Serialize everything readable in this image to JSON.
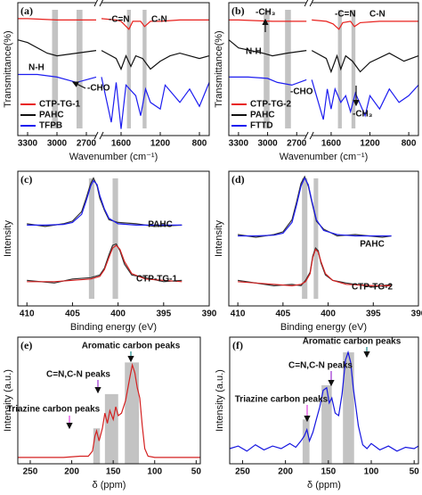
{
  "chart_data": [
    {
      "type": "line",
      "panel": "(a)",
      "xlabel": "Wavenumber (cm⁻¹)",
      "ylabel": "Transmittance(%)",
      "xlim": [
        3400,
        700
      ],
      "xbreak": [
        2600,
        1800
      ],
      "xticks": [
        3300,
        3000,
        2700,
        1600,
        1200,
        800
      ],
      "ylim": [
        0,
        100
      ],
      "legend": "lower left",
      "bands": [
        {
          "x0": 3050,
          "x1": 2990
        },
        {
          "x0": 2800,
          "x1": 2740
        },
        {
          "x0": 1540,
          "x1": 1500
        },
        {
          "x0": 1380,
          "x1": 1340
        }
      ],
      "annotations": [
        {
          "text": "N-H",
          "color": "#111111"
        },
        {
          "text": "-CHO",
          "color": "#111111"
        },
        {
          "text": "-C=N",
          "color": "#111111"
        },
        {
          "text": "C-N",
          "color": "#111111"
        }
      ],
      "series": [
        {
          "name": "CTP-TG-1",
          "color": "#e8201c",
          "x": [
            3400,
            3300,
            3000,
            2700,
            2600,
            1800,
            1650,
            1600,
            1520,
            1480,
            1400,
            1360,
            1300,
            1200,
            1000,
            800,
            700
          ],
          "values": [
            88,
            88,
            87,
            87,
            87,
            88,
            87,
            86,
            80,
            86,
            86,
            82,
            86,
            86,
            87,
            87,
            87
          ]
        },
        {
          "name": "PAHC",
          "color": "#111111",
          "x": [
            3400,
            3300,
            3100,
            3000,
            2800,
            2600,
            1800,
            1650,
            1600,
            1550,
            1500,
            1450,
            1380,
            1300,
            1200,
            1100,
            1000,
            800,
            700
          ],
          "values": [
            72,
            70,
            62,
            60,
            62,
            64,
            64,
            58,
            50,
            60,
            52,
            60,
            58,
            50,
            56,
            60,
            62,
            58,
            60
          ]
        },
        {
          "name": "TFPB",
          "color": "#1d1df0",
          "x": [
            3400,
            3200,
            3000,
            2800,
            2700,
            2600,
            1800,
            1700,
            1650,
            1600,
            1550,
            1450,
            1400,
            1350,
            1300,
            1200,
            1150,
            1000,
            900,
            800,
            700
          ],
          "values": [
            46,
            46,
            44,
            40,
            42,
            44,
            44,
            10,
            40,
            5,
            38,
            30,
            15,
            35,
            25,
            20,
            38,
            25,
            35,
            22,
            40
          ]
        }
      ]
    },
    {
      "type": "line",
      "panel": "(b)",
      "xlabel": "Wavenumber (cm⁻¹)",
      "ylabel": "Transmittance(%)",
      "xlim": [
        3400,
        700
      ],
      "xbreak": [
        2600,
        1800
      ],
      "xticks": [
        3300,
        3000,
        2700,
        1600,
        1200,
        800
      ],
      "ylim": [
        0,
        100
      ],
      "legend": "lower left",
      "bands": [
        {
          "x0": 3040,
          "x1": 2980
        },
        {
          "x0": 2820,
          "x1": 2760
        },
        {
          "x0": 1530,
          "x1": 1490
        },
        {
          "x0": 1390,
          "x1": 1350
        }
      ],
      "annotations": [
        {
          "text": "-CH₃",
          "color": "#111111"
        },
        {
          "text": "-C=N",
          "color": "#111111"
        },
        {
          "text": "C-N",
          "color": "#111111"
        },
        {
          "text": "N-H",
          "color": "#111111"
        },
        {
          "text": "-CHO",
          "color": "#111111"
        },
        {
          "text": "-CH₃",
          "color": "#111111"
        }
      ],
      "series": [
        {
          "name": "CTP-TG-2",
          "color": "#e8201c",
          "x": [
            3400,
            3300,
            2950,
            2700,
            2600,
            1800,
            1650,
            1580,
            1520,
            1480,
            1400,
            1360,
            1300,
            1100,
            900,
            700
          ],
          "values": [
            87,
            87,
            86,
            86,
            86,
            87,
            86,
            84,
            80,
            85,
            86,
            82,
            85,
            86,
            86,
            86
          ]
        },
        {
          "name": "PAHC",
          "color": "#111111",
          "x": [
            3400,
            3300,
            3050,
            2950,
            2800,
            2600,
            1800,
            1650,
            1600,
            1540,
            1500,
            1450,
            1380,
            1300,
            1200,
            1000,
            850,
            700
          ],
          "values": [
            72,
            66,
            62,
            60,
            62,
            64,
            64,
            58,
            48,
            60,
            50,
            60,
            56,
            48,
            55,
            62,
            56,
            60
          ]
        },
        {
          "name": "FTTD",
          "color": "#1d1df0",
          "x": [
            3400,
            3200,
            3000,
            2900,
            2750,
            2600,
            1800,
            1680,
            1640,
            1600,
            1560,
            1500,
            1450,
            1400,
            1350,
            1250,
            1200,
            1100,
            1000,
            900,
            800,
            700
          ],
          "values": [
            44,
            44,
            43,
            40,
            38,
            42,
            42,
            12,
            35,
            20,
            35,
            25,
            30,
            18,
            32,
            15,
            30,
            20,
            35,
            25,
            30,
            38
          ]
        }
      ]
    },
    {
      "type": "line",
      "panel": "(c)",
      "xlabel": "Binding energy (eV)",
      "ylabel": "Intensity",
      "xlim": [
        411,
        390
      ],
      "xticks": [
        410,
        405,
        400,
        395,
        390
      ],
      "ylim": [
        0,
        100
      ],
      "legend": "inline",
      "bands": [
        {
          "x0": 403.2,
          "x1": 402.6
        },
        {
          "x0": 400.6,
          "x1": 400.0
        }
      ],
      "annotations": [],
      "series": [
        {
          "color": "#333333",
          "x": [
            410,
            408,
            406,
            405,
            404,
            403.5,
            403,
            402.7,
            402.3,
            402,
            401.5,
            401,
            400,
            398,
            396,
            393
          ],
          "values": [
            61,
            59,
            61,
            63,
            70,
            80,
            91,
            95,
            89,
            80,
            71,
            64,
            62,
            61,
            59,
            60
          ]
        },
        {
          "name": "PAHC",
          "color": "#1d1df0",
          "x": [
            410,
            408,
            406,
            405,
            404,
            403.5,
            403,
            402.7,
            402.3,
            402,
            401.5,
            401,
            400,
            398,
            396,
            393
          ],
          "values": [
            60,
            60,
            60.5,
            62,
            68,
            78,
            89,
            93,
            90,
            82,
            72,
            65,
            61,
            60,
            60,
            60
          ]
        },
        {
          "color": "#333333",
          "x": [
            410,
            407,
            405,
            403,
            402,
            401.5,
            401,
            400.6,
            400.2,
            399.8,
            399.3,
            398.5,
            397,
            395,
            393
          ],
          "values": [
            19,
            17,
            20,
            21,
            23,
            28,
            38,
            45,
            46,
            41,
            31,
            23,
            21,
            18,
            19
          ]
        },
        {
          "name": "CTP-TG-1",
          "color": "#d42020",
          "x": [
            410,
            407,
            405,
            403,
            402,
            401.5,
            401,
            400.6,
            400.2,
            399.8,
            399.3,
            398.5,
            397,
            395,
            393
          ],
          "values": [
            18,
            18,
            19,
            20,
            22,
            27,
            36,
            43,
            45,
            42,
            33,
            24,
            20,
            19,
            18
          ]
        }
      ]
    },
    {
      "type": "line",
      "panel": "(d)",
      "xlabel": "Binding energy (eV)",
      "ylabel": "Intensity",
      "xlim": [
        411,
        390
      ],
      "xticks": [
        410,
        405,
        400,
        395,
        390
      ],
      "ylim": [
        0,
        100
      ],
      "legend": "inline",
      "bands": [
        {
          "x0": 402.9,
          "x1": 402.3
        },
        {
          "x0": 401.6,
          "x1": 401.1
        }
      ],
      "annotations": [],
      "series": [
        {
          "color": "#333333",
          "x": [
            410,
            408,
            406,
            405,
            404,
            403.5,
            403,
            402.6,
            402.2,
            401.8,
            401.3,
            400.5,
            399,
            397,
            394,
            393
          ],
          "values": [
            53,
            51,
            53,
            55,
            64,
            77,
            91,
            96,
            89,
            77,
            63,
            57,
            52,
            53,
            51,
            52
          ]
        },
        {
          "name": "PAHC",
          "color": "#1d1df0",
          "x": [
            410,
            408,
            406,
            405,
            404,
            403.5,
            403,
            402.6,
            402.2,
            401.8,
            401.3,
            400.5,
            399,
            397,
            394,
            393
          ],
          "values": [
            52,
            52,
            52.5,
            54,
            62,
            75,
            89,
            95,
            90,
            78,
            64,
            56,
            53,
            52,
            52,
            52
          ]
        },
        {
          "color": "#333333",
          "x": [
            410,
            406,
            404,
            403,
            402.5,
            402,
            401.7,
            401.4,
            401.1,
            400.8,
            400.3,
            399.5,
            398,
            395,
            393
          ],
          "values": [
            19,
            15,
            16,
            15,
            19,
            25,
            37,
            43,
            41,
            32,
            23,
            19,
            17,
            14,
            16
          ]
        },
        {
          "name": "CTP-TG-2",
          "color": "#d42020",
          "x": [
            410,
            406,
            404,
            403,
            402.5,
            402,
            401.7,
            401.4,
            401.1,
            400.8,
            400.3,
            399.5,
            398,
            395,
            393
          ],
          "values": [
            18,
            16,
            15,
            16,
            18,
            24,
            36,
            42,
            40,
            33,
            24,
            19,
            16,
            15,
            15
          ]
        }
      ]
    },
    {
      "type": "line",
      "panel": "(e)",
      "xlabel": "δ (ppm)",
      "ylabel": "Intensity (a.u.)",
      "xlim": [
        265,
        45
      ],
      "xticks": [
        250,
        200,
        150,
        100,
        50
      ],
      "ylim": [
        0,
        100
      ],
      "legend": "none",
      "bands": [
        {
          "x0": 174,
          "x1": 166,
          "top": 28
        },
        {
          "x0": 160,
          "x1": 144,
          "top": 55
        },
        {
          "x0": 136,
          "x1": 119,
          "top": 80
        }
      ],
      "annotations": [
        {
          "text": "Aromatic carbon peaks",
          "color": "#1a8a8a"
        },
        {
          "text": "C=N,C-N peaks",
          "color": "#9b30d0"
        },
        {
          "text": "Triazine carbon peaks",
          "color": "#e040e0"
        }
      ],
      "series": [
        {
          "color": "#d42020",
          "x": [
            265,
            240,
            210,
            190,
            180,
            175,
            172,
            170,
            167,
            163,
            160,
            157,
            154,
            150,
            147,
            144,
            140,
            135,
            130,
            127,
            124,
            121,
            118,
            115,
            112,
            108,
            100,
            80,
            60,
            45
          ],
          "values": [
            5,
            5,
            5,
            6,
            6,
            10,
            22,
            26,
            18,
            28,
            40,
            32,
            42,
            35,
            45,
            38,
            40,
            50,
            68,
            78,
            72,
            60,
            52,
            30,
            12,
            6,
            5,
            5,
            5,
            5
          ]
        }
      ]
    },
    {
      "type": "line",
      "panel": "(f)",
      "xlabel": "δ (ppm)",
      "ylabel": "Intensity (a.u.)",
      "xlim": [
        265,
        45
      ],
      "xticks": [
        250,
        200,
        150,
        100,
        50
      ],
      "ylim": [
        0,
        100
      ],
      "legend": "none",
      "bands": [
        {
          "x0": 180,
          "x1": 172,
          "top": 35
        },
        {
          "x0": 158,
          "x1": 146,
          "top": 62
        },
        {
          "x0": 133,
          "x1": 120,
          "top": 88
        }
      ],
      "annotations": [
        {
          "text": "Aromatic carbon peaks",
          "color": "#1a8a8a"
        },
        {
          "text": "C=N,C-N peaks",
          "color": "#9b30d0"
        },
        {
          "text": "Triazine carbon peaks",
          "color": "#e040e0"
        }
      ],
      "series": [
        {
          "color": "#1515e0",
          "x": [
            265,
            255,
            245,
            235,
            225,
            215,
            205,
            195,
            188,
            182,
            178,
            175,
            172,
            168,
            164,
            160,
            156,
            152,
            149,
            146,
            142,
            138,
            134,
            130,
            127,
            124,
            121,
            118,
            115,
            110,
            105,
            100,
            90,
            80,
            70,
            60,
            50,
            45
          ],
          "values": [
            12,
            14,
            10,
            15,
            11,
            14,
            12,
            16,
            13,
            18,
            22,
            27,
            18,
            25,
            35,
            45,
            58,
            60,
            48,
            52,
            40,
            38,
            55,
            82,
            88,
            80,
            60,
            45,
            30,
            15,
            12,
            16,
            11,
            14,
            10,
            13,
            12,
            14
          ]
        }
      ]
    }
  ]
}
